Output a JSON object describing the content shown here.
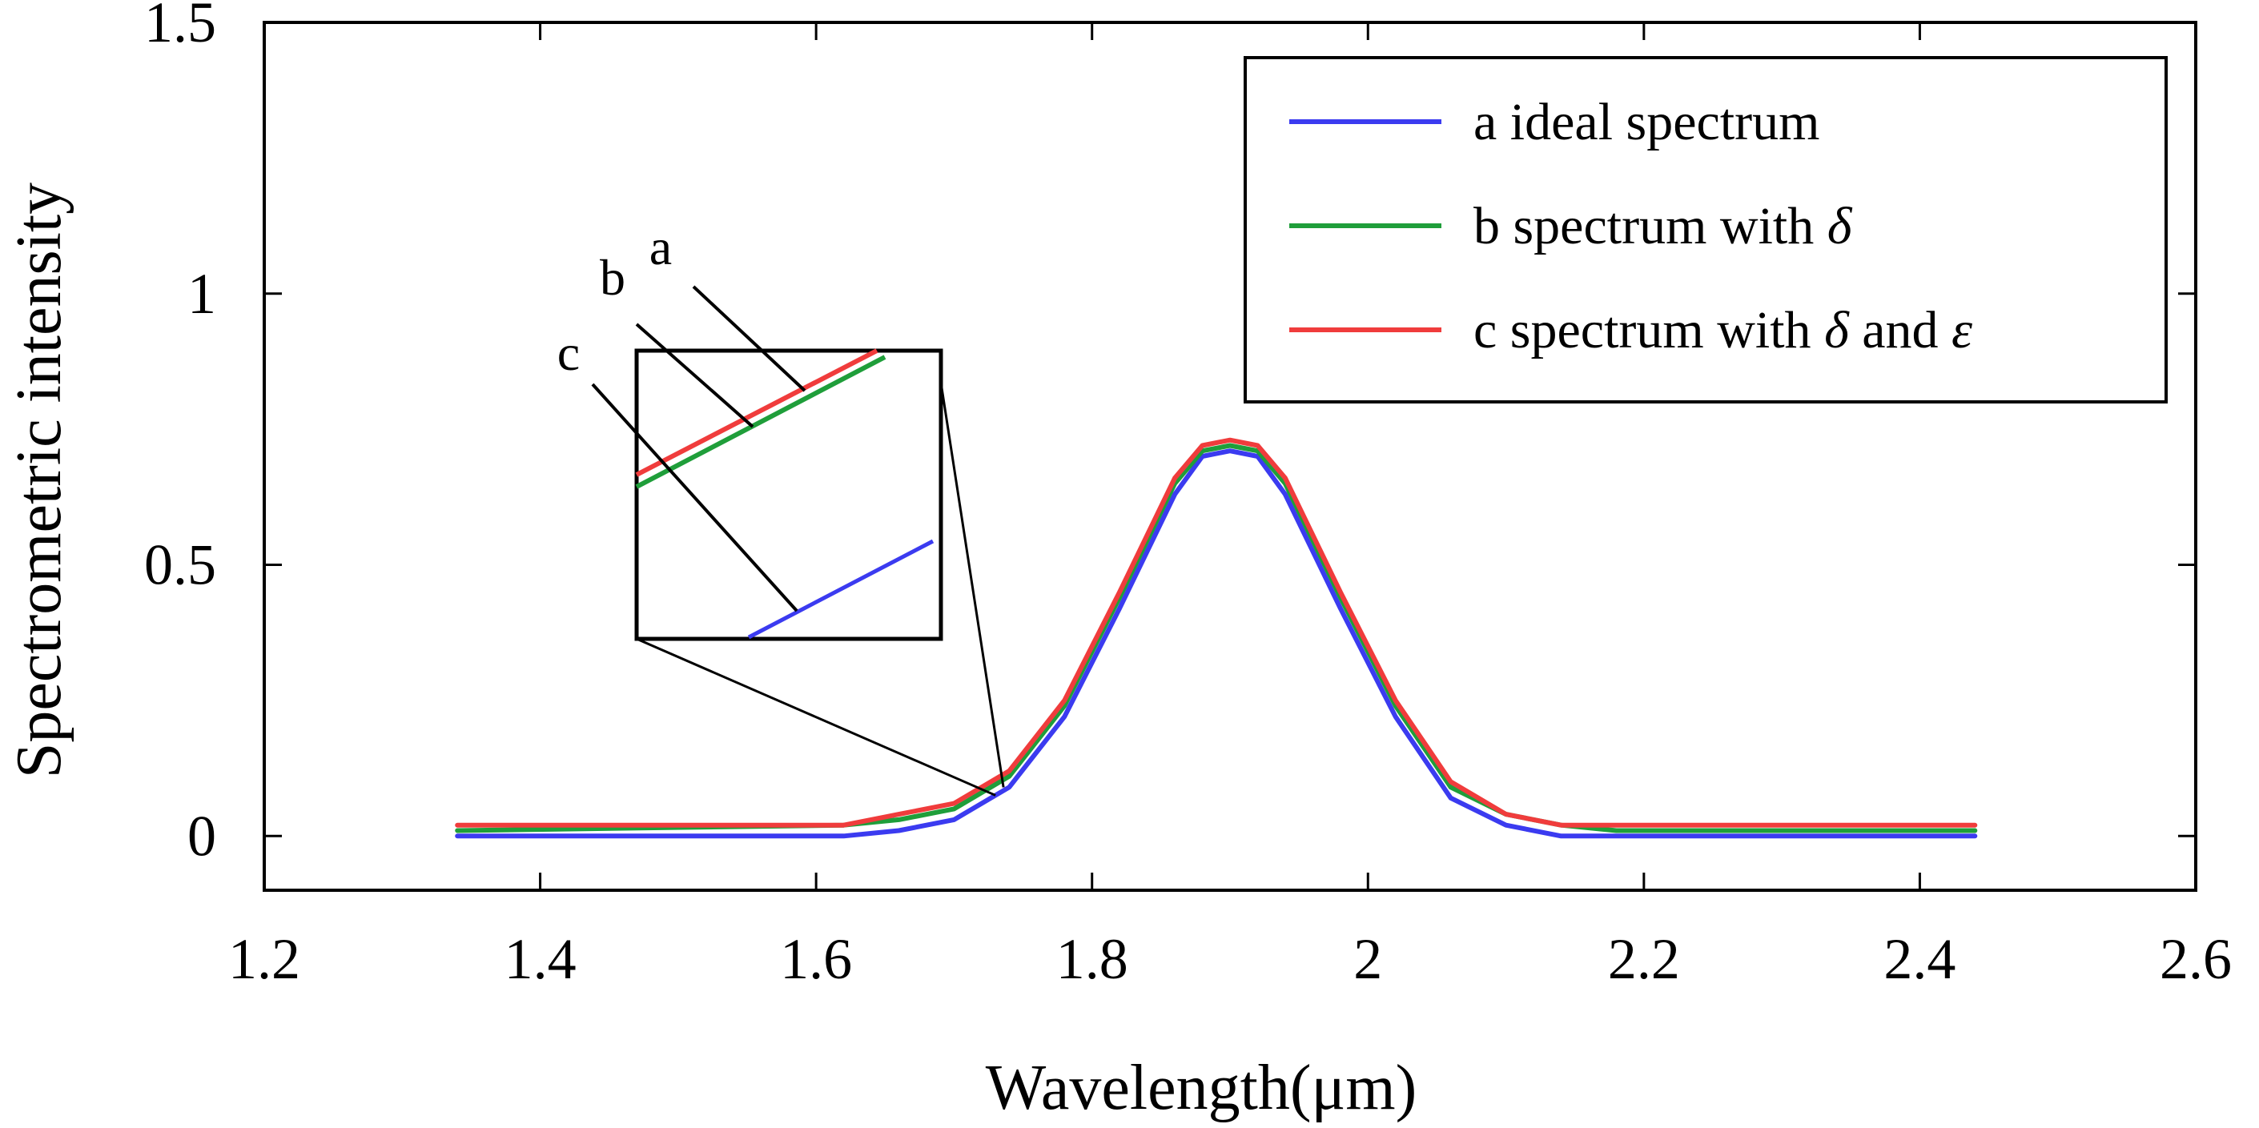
{
  "chart_data": {
    "type": "line",
    "title": "",
    "xlabel": "Wavelength(μm)",
    "ylabel": "Spectrometric intensity",
    "xlim": [
      1.2,
      2.6
    ],
    "ylim": [
      -0.1,
      1.5
    ],
    "x_ticks": [
      "1.2",
      "1.4",
      "1.6",
      "1.8",
      "2",
      "2.2",
      "2.4",
      "2.6"
    ],
    "y_ticks": [
      "0",
      "0.5",
      "1",
      "1.5"
    ],
    "legend_position": "top-right",
    "series": [
      {
        "name": "a ideal spectrum",
        "label_html": "a ideal spectrum",
        "color": "#3b3bf0",
        "x": [
          1.34,
          1.62,
          1.66,
          1.7,
          1.74,
          1.78,
          1.82,
          1.86,
          1.88,
          1.9,
          1.92,
          1.94,
          1.98,
          2.02,
          2.06,
          2.1,
          2.14,
          2.18,
          2.44
        ],
        "y": [
          0.0,
          0.0,
          0.01,
          0.03,
          0.09,
          0.22,
          0.42,
          0.63,
          0.7,
          0.71,
          0.7,
          0.63,
          0.42,
          0.22,
          0.07,
          0.02,
          0.0,
          0.0,
          0.0
        ]
      },
      {
        "name": "b spectrum with δ",
        "color": "#1f9e3a",
        "x": [
          1.34,
          1.62,
          1.66,
          1.7,
          1.74,
          1.78,
          1.82,
          1.86,
          1.88,
          1.9,
          1.92,
          1.94,
          1.98,
          2.02,
          2.06,
          2.1,
          2.14,
          2.18,
          2.44
        ],
        "y": [
          0.01,
          0.02,
          0.03,
          0.05,
          0.11,
          0.24,
          0.44,
          0.65,
          0.71,
          0.72,
          0.71,
          0.65,
          0.44,
          0.24,
          0.09,
          0.04,
          0.02,
          0.01,
          0.01
        ]
      },
      {
        "name": "c spectrum with δ and ε",
        "color": "#f03c3c",
        "x": [
          1.34,
          1.62,
          1.66,
          1.7,
          1.74,
          1.78,
          1.82,
          1.86,
          1.88,
          1.9,
          1.92,
          1.94,
          1.98,
          2.02,
          2.06,
          2.1,
          2.14,
          2.18,
          2.44
        ],
        "y": [
          0.02,
          0.02,
          0.04,
          0.06,
          0.12,
          0.25,
          0.45,
          0.66,
          0.72,
          0.73,
          0.72,
          0.66,
          0.45,
          0.25,
          0.1,
          0.04,
          0.02,
          0.02,
          0.02
        ]
      }
    ],
    "legend": [
      {
        "prefix": "a ideal spectrum",
        "sym1": "",
        "mid": "",
        "sym2": ""
      },
      {
        "prefix": "b spectrum with ",
        "sym1": "δ",
        "mid": "",
        "sym2": ""
      },
      {
        "prefix": "c spectrum with ",
        "sym1": "δ",
        "mid": " and ",
        "sym2": "ε"
      }
    ],
    "inset": {
      "zoom_point": [
        1.73,
        0.075
      ],
      "labels": [
        "a",
        "b",
        "c"
      ]
    }
  }
}
